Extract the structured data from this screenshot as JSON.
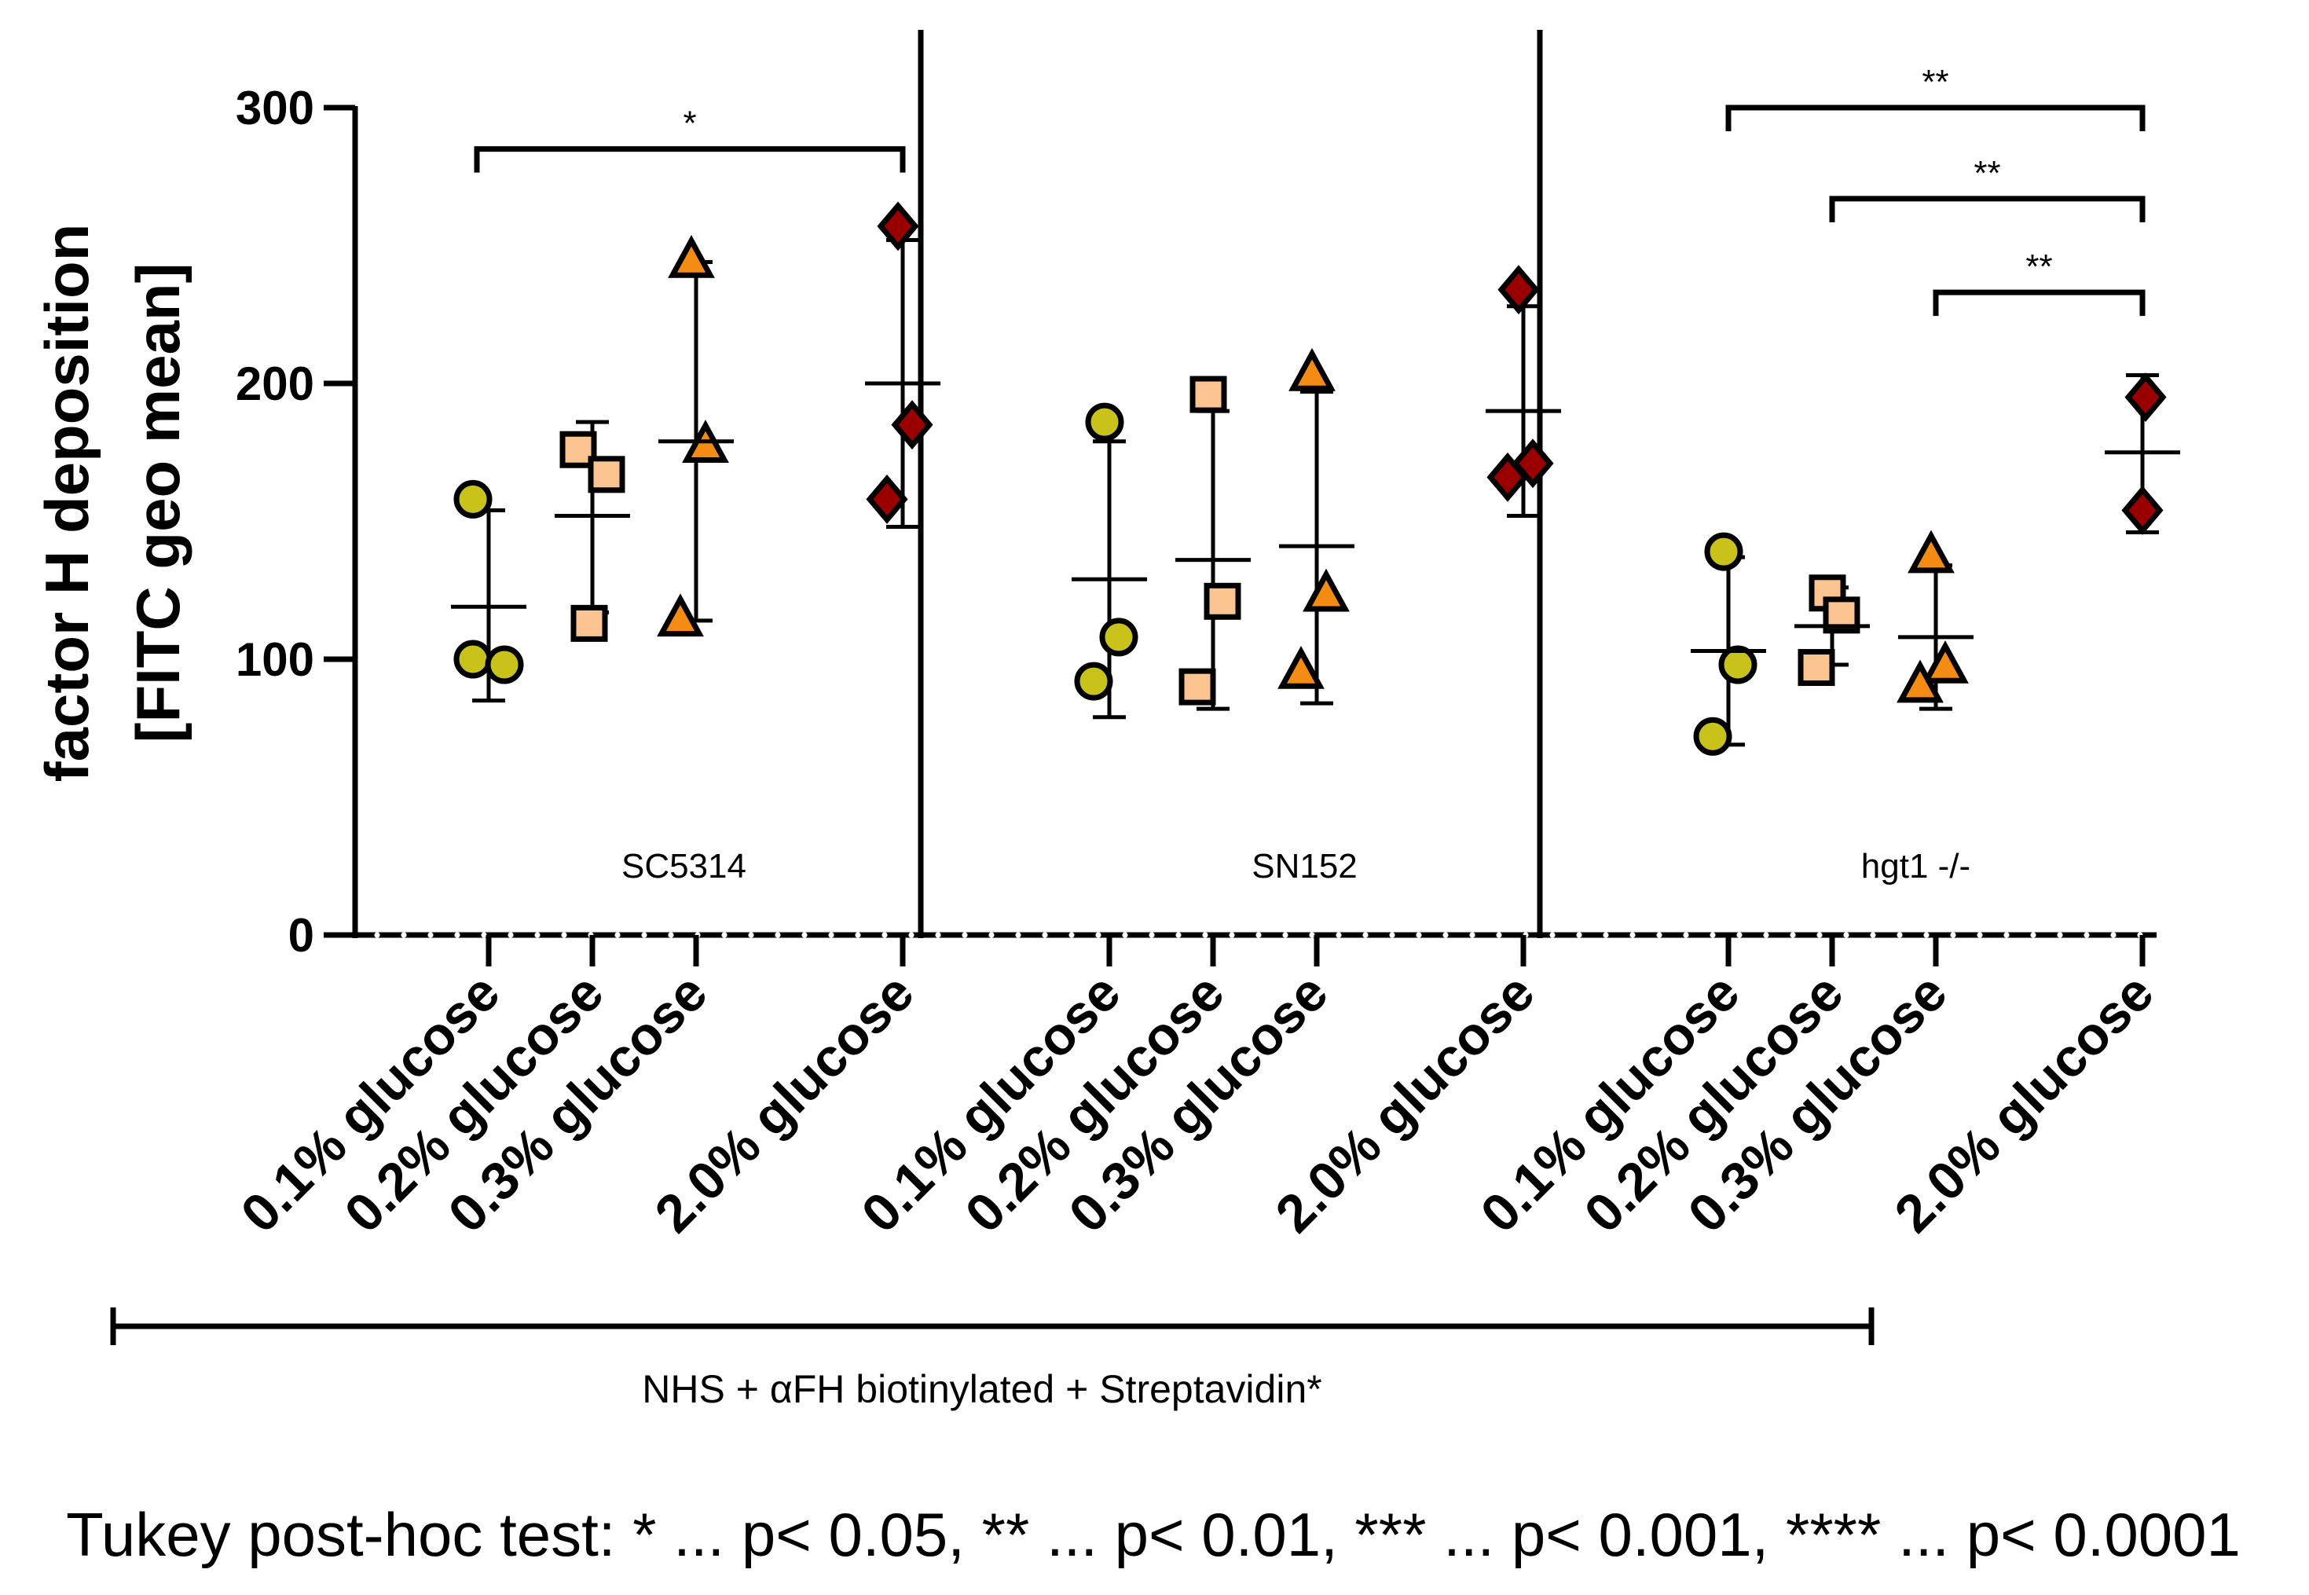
{
  "chart_data": {
    "type": "scatter",
    "ylabel_line1": "factor H deposition",
    "ylabel_line2": "[FITC geo mean]",
    "ylim": [
      0,
      300
    ],
    "yticks": [
      "0",
      "100",
      "200",
      "300"
    ],
    "categories": [
      "0.1% glucose",
      "0.2% glucose",
      "0.3% glucose",
      "2.0% glucose"
    ],
    "group_colors": [
      "#c9c21a",
      "#fcc490",
      "#f48c14",
      "#9b0000"
    ],
    "group_markers": [
      "circle",
      "square",
      "triangle",
      "diamond"
    ],
    "panels": [
      {
        "name": "SC5314",
        "series": [
          {
            "category": "0.1% glucose",
            "values": [
              158,
              100,
              98
            ],
            "mean": 119,
            "sd_low": 85,
            "sd_high": 154
          },
          {
            "category": "0.2% glucose",
            "values": [
              176,
              167,
              113
            ],
            "mean": 152,
            "sd_low": 117,
            "sd_high": 186
          },
          {
            "category": "0.3% glucose",
            "values": [
              244,
              177,
              114
            ],
            "mean": 179,
            "sd_low": 114,
            "sd_high": 244
          },
          {
            "category": "2.0% glucose",
            "values": [
              257,
              185,
              158
            ],
            "mean": 200,
            "sd_low": 148,
            "sd_high": 252
          }
        ]
      },
      {
        "name": "SN152",
        "series": [
          {
            "category": "0.1% glucose",
            "values": [
              186,
              108,
              92
            ],
            "mean": 129,
            "sd_low": 79,
            "sd_high": 179
          },
          {
            "category": "0.2% glucose",
            "values": [
              196,
              121,
              90
            ],
            "mean": 136,
            "sd_low": 82,
            "sd_high": 190
          },
          {
            "category": "0.3% glucose",
            "values": [
              203,
              123,
              95
            ],
            "mean": 141,
            "sd_low": 84,
            "sd_high": 197
          },
          {
            "category": "2.0% glucose",
            "values": [
              234,
              171,
              166
            ],
            "mean": 190,
            "sd_low": 152,
            "sd_high": 228
          }
        ]
      },
      {
        "name": "hgt1 -/-",
        "series": [
          {
            "category": "0.1% glucose",
            "values": [
              139,
              98,
              72
            ],
            "mean": 103,
            "sd_low": 69,
            "sd_high": 137
          },
          {
            "category": "0.2% glucose",
            "values": [
              124,
              116,
              97
            ],
            "mean": 112,
            "sd_low": 98,
            "sd_high": 126
          },
          {
            "category": "0.3% glucose",
            "values": [
              137,
              97,
              90
            ],
            "mean": 108,
            "sd_low": 82,
            "sd_high": 134
          },
          {
            "category": "2.0% glucose",
            "values": [
              195,
              154
            ],
            "mean": 175,
            "sd_low": 146,
            "sd_high": 203
          }
        ]
      }
    ],
    "significance": [
      {
        "panel": 0,
        "from": 0,
        "to": 3,
        "y": 285,
        "label": "*"
      },
      {
        "panel": 2,
        "from": 0,
        "to": 3,
        "y": 300,
        "label": "**"
      },
      {
        "panel": 2,
        "from": 1,
        "to": 3,
        "y": 267,
        "label": "**"
      },
      {
        "panel": 2,
        "from": 2,
        "to": 3,
        "y": 233,
        "label": "**"
      }
    ],
    "treatment_label": "NHS + αFH biotinylated + Streptavidin*",
    "footnote": "Tukey post-hoc test: * ... p< 0.05, ** ... p< 0.01, *** ... p< 0.001, **** ... p< 0.0001"
  }
}
